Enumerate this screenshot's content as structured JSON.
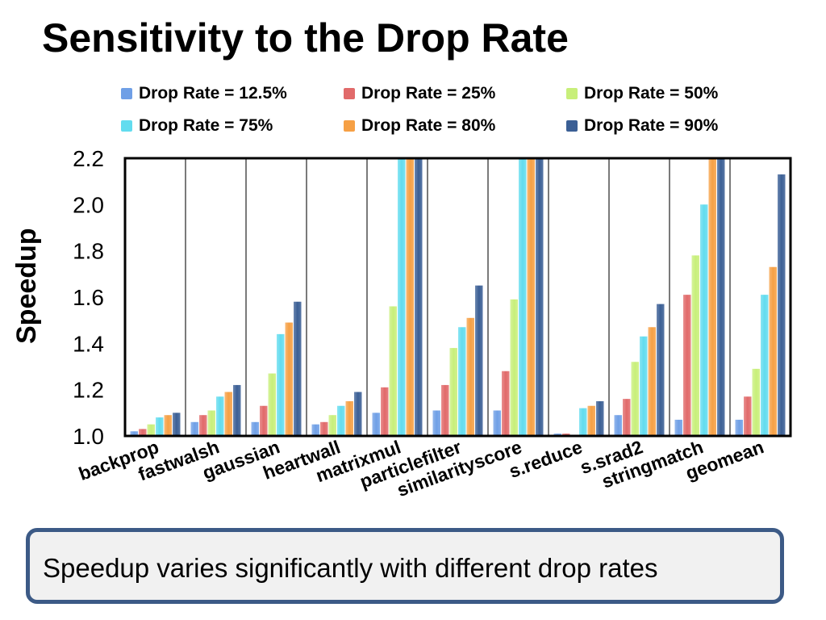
{
  "slide": {
    "title": "Sensitivity to the Drop Rate",
    "callout": "Speedup varies significantly with different drop rates"
  },
  "colors": {
    "s0": "#6f9fe6",
    "s1": "#e16a6a",
    "s2": "#c8ef7a",
    "s3": "#62dcef",
    "s4": "#f6a045",
    "s5": "#3b5f95"
  },
  "chart_data": {
    "type": "bar",
    "title": "",
    "xlabel": "",
    "ylabel": "Speedup",
    "ylim": [
      1.0,
      2.2
    ],
    "yticks": [
      "1.0",
      "1.2",
      "1.4",
      "1.6",
      "1.8",
      "2.0",
      "2.2"
    ],
    "grid": "vertical category separators",
    "legend_position": "top",
    "categories": [
      "backprop",
      "fastwalsh",
      "gaussian",
      "heartwall",
      "matrixmul",
      "particlefilter",
      "similarityscore",
      "s.reduce",
      "s.srad2",
      "stringmatch",
      "geomean"
    ],
    "series": [
      {
        "name": "Drop Rate = 12.5%",
        "values": [
          1.02,
          1.06,
          1.06,
          1.05,
          1.1,
          1.11,
          1.11,
          1.01,
          1.09,
          1.07,
          1.07
        ]
      },
      {
        "name": "Drop Rate = 25%",
        "values": [
          1.03,
          1.09,
          1.13,
          1.06,
          1.21,
          1.22,
          1.28,
          1.01,
          1.16,
          1.61,
          1.17
        ]
      },
      {
        "name": "Drop Rate = 50%",
        "values": [
          1.05,
          1.11,
          1.27,
          1.09,
          1.56,
          1.38,
          1.59,
          1.0,
          1.32,
          1.78,
          1.29
        ]
      },
      {
        "name": "Drop Rate = 75%",
        "values": [
          1.08,
          1.17,
          1.44,
          1.13,
          2.2,
          1.47,
          2.2,
          1.12,
          1.43,
          2.0,
          1.61
        ]
      },
      {
        "name": "Drop Rate = 80%",
        "values": [
          1.09,
          1.19,
          1.49,
          1.15,
          2.2,
          1.51,
          2.2,
          1.13,
          1.47,
          2.2,
          1.73
        ]
      },
      {
        "name": "Drop Rate = 90%",
        "values": [
          1.1,
          1.22,
          1.58,
          1.19,
          2.2,
          1.65,
          2.2,
          1.15,
          1.57,
          2.2,
          2.13
        ]
      }
    ]
  }
}
